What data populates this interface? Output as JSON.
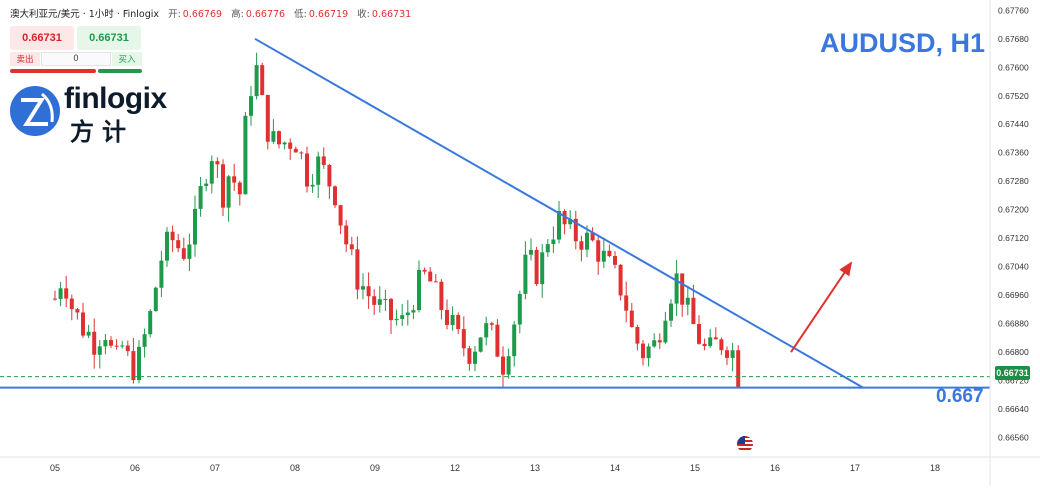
{
  "header": {
    "symbol_text": "澳大利亚元/美元 · 1小时 · Finlogix",
    "open_label": "开:",
    "open_value": "0.66769",
    "high_label": "高:",
    "high_value": "0.66776",
    "low_label": "低:",
    "low_value": "0.66719",
    "close_label": "收:",
    "close_value": "0.66731"
  },
  "trade_panel": {
    "sell_price": "0.66731",
    "buy_price": "0.66731",
    "sell_label": "卖出",
    "buy_label": "买入",
    "quantity": "0"
  },
  "logo": {
    "name": "finlogix",
    "chinese": "方计"
  },
  "annotations": {
    "symbol_title": "AUDUSD, H1",
    "level_label": "0.667",
    "last_price_tag": "0.66731"
  },
  "colors": {
    "up": "#1e9a4b",
    "down": "#e03131",
    "trendline": "#3a78e0",
    "arrow": "#e03131",
    "dashed": "#1e9a4b"
  },
  "chart_data": {
    "type": "candlestick",
    "title": "AUDUSD, H1",
    "y_ticks": [
      0.6776,
      0.6768,
      0.676,
      0.6752,
      0.6744,
      0.6736,
      0.6728,
      0.672,
      0.6712,
      0.6704,
      0.6696,
      0.6688,
      0.668,
      0.6672,
      0.6664,
      0.6656
    ],
    "y_tick_labels": [
      "0.67760",
      "0.67680",
      "0.67600",
      "0.67520",
      "0.67440",
      "0.67360",
      "0.67280",
      "0.67200",
      "0.67120",
      "0.67040",
      "0.66960",
      "0.66880",
      "0.66800",
      "0.66720",
      "0.66640",
      "0.66560"
    ],
    "x_tick_labels": [
      "05",
      "06",
      "07",
      "08",
      "09",
      "12",
      "13",
      "14",
      "15",
      "16",
      "17",
      "18"
    ],
    "ylim": [
      0.66505,
      0.67775
    ],
    "last_price": 0.66731,
    "horizontal_level": 0.667,
    "descending_trendline": {
      "start": [
        2.5,
        0.6768
      ],
      "end": [
        10.1,
        0.667
      ]
    },
    "projection_arrow": {
      "from": [
        9.2,
        0.668
      ],
      "to": [
        9.95,
        0.6705
      ]
    },
    "candles_anchor_path": [
      [
        0.0,
        0.6695
      ],
      [
        0.05,
        0.6699
      ],
      [
        0.1,
        0.6702
      ],
      [
        0.15,
        0.6698
      ],
      [
        0.22,
        0.6692
      ],
      [
        0.35,
        0.6687
      ],
      [
        0.5,
        0.6683
      ],
      [
        0.62,
        0.6687
      ],
      [
        0.75,
        0.6676
      ],
      [
        0.85,
        0.6682
      ],
      [
        0.95,
        0.6675
      ],
      [
        1.05,
        0.6678
      ],
      [
        1.2,
        0.6691
      ],
      [
        1.32,
        0.6706
      ],
      [
        1.45,
        0.6712
      ],
      [
        1.6,
        0.6708
      ],
      [
        1.75,
        0.6716
      ],
      [
        1.85,
        0.6728
      ],
      [
        1.95,
        0.6737
      ],
      [
        2.1,
        0.6725
      ],
      [
        2.2,
        0.6732
      ],
      [
        2.3,
        0.6722
      ],
      [
        2.4,
        0.6748
      ],
      [
        2.5,
        0.6762
      ],
      [
        2.62,
        0.6745
      ],
      [
        2.75,
        0.6738
      ],
      [
        3.0,
        0.674
      ],
      [
        3.15,
        0.673
      ],
      [
        3.3,
        0.6733
      ],
      [
        3.5,
        0.6725
      ],
      [
        3.6,
        0.6714
      ],
      [
        3.75,
        0.6702
      ],
      [
        3.95,
        0.6695
      ],
      [
        4.15,
        0.669
      ],
      [
        4.35,
        0.6688
      ],
      [
        4.5,
        0.6697
      ],
      [
        4.65,
        0.6702
      ],
      [
        4.75,
        0.6696
      ],
      [
        4.9,
        0.669
      ],
      [
        5.05,
        0.6683
      ],
      [
        5.2,
        0.668
      ],
      [
        5.35,
        0.6687
      ],
      [
        5.5,
        0.6683
      ],
      [
        5.6,
        0.6677
      ],
      [
        5.75,
        0.669
      ],
      [
        5.9,
        0.6706
      ],
      [
        6.05,
        0.6702
      ],
      [
        6.15,
        0.6712
      ],
      [
        6.3,
        0.6717
      ],
      [
        6.45,
        0.6713
      ],
      [
        6.6,
        0.6712
      ],
      [
        6.75,
        0.671
      ],
      [
        6.95,
        0.6703
      ],
      [
        7.1,
        0.6697
      ],
      [
        7.22,
        0.6685
      ],
      [
        7.35,
        0.668
      ],
      [
        7.5,
        0.6682
      ],
      [
        7.65,
        0.6695
      ],
      [
        7.78,
        0.6701
      ],
      [
        7.92,
        0.669
      ],
      [
        8.05,
        0.6684
      ],
      [
        8.15,
        0.6679
      ],
      [
        8.3,
        0.6683
      ],
      [
        8.45,
        0.6682
      ],
      [
        8.55,
        0.6673
      ]
    ]
  }
}
